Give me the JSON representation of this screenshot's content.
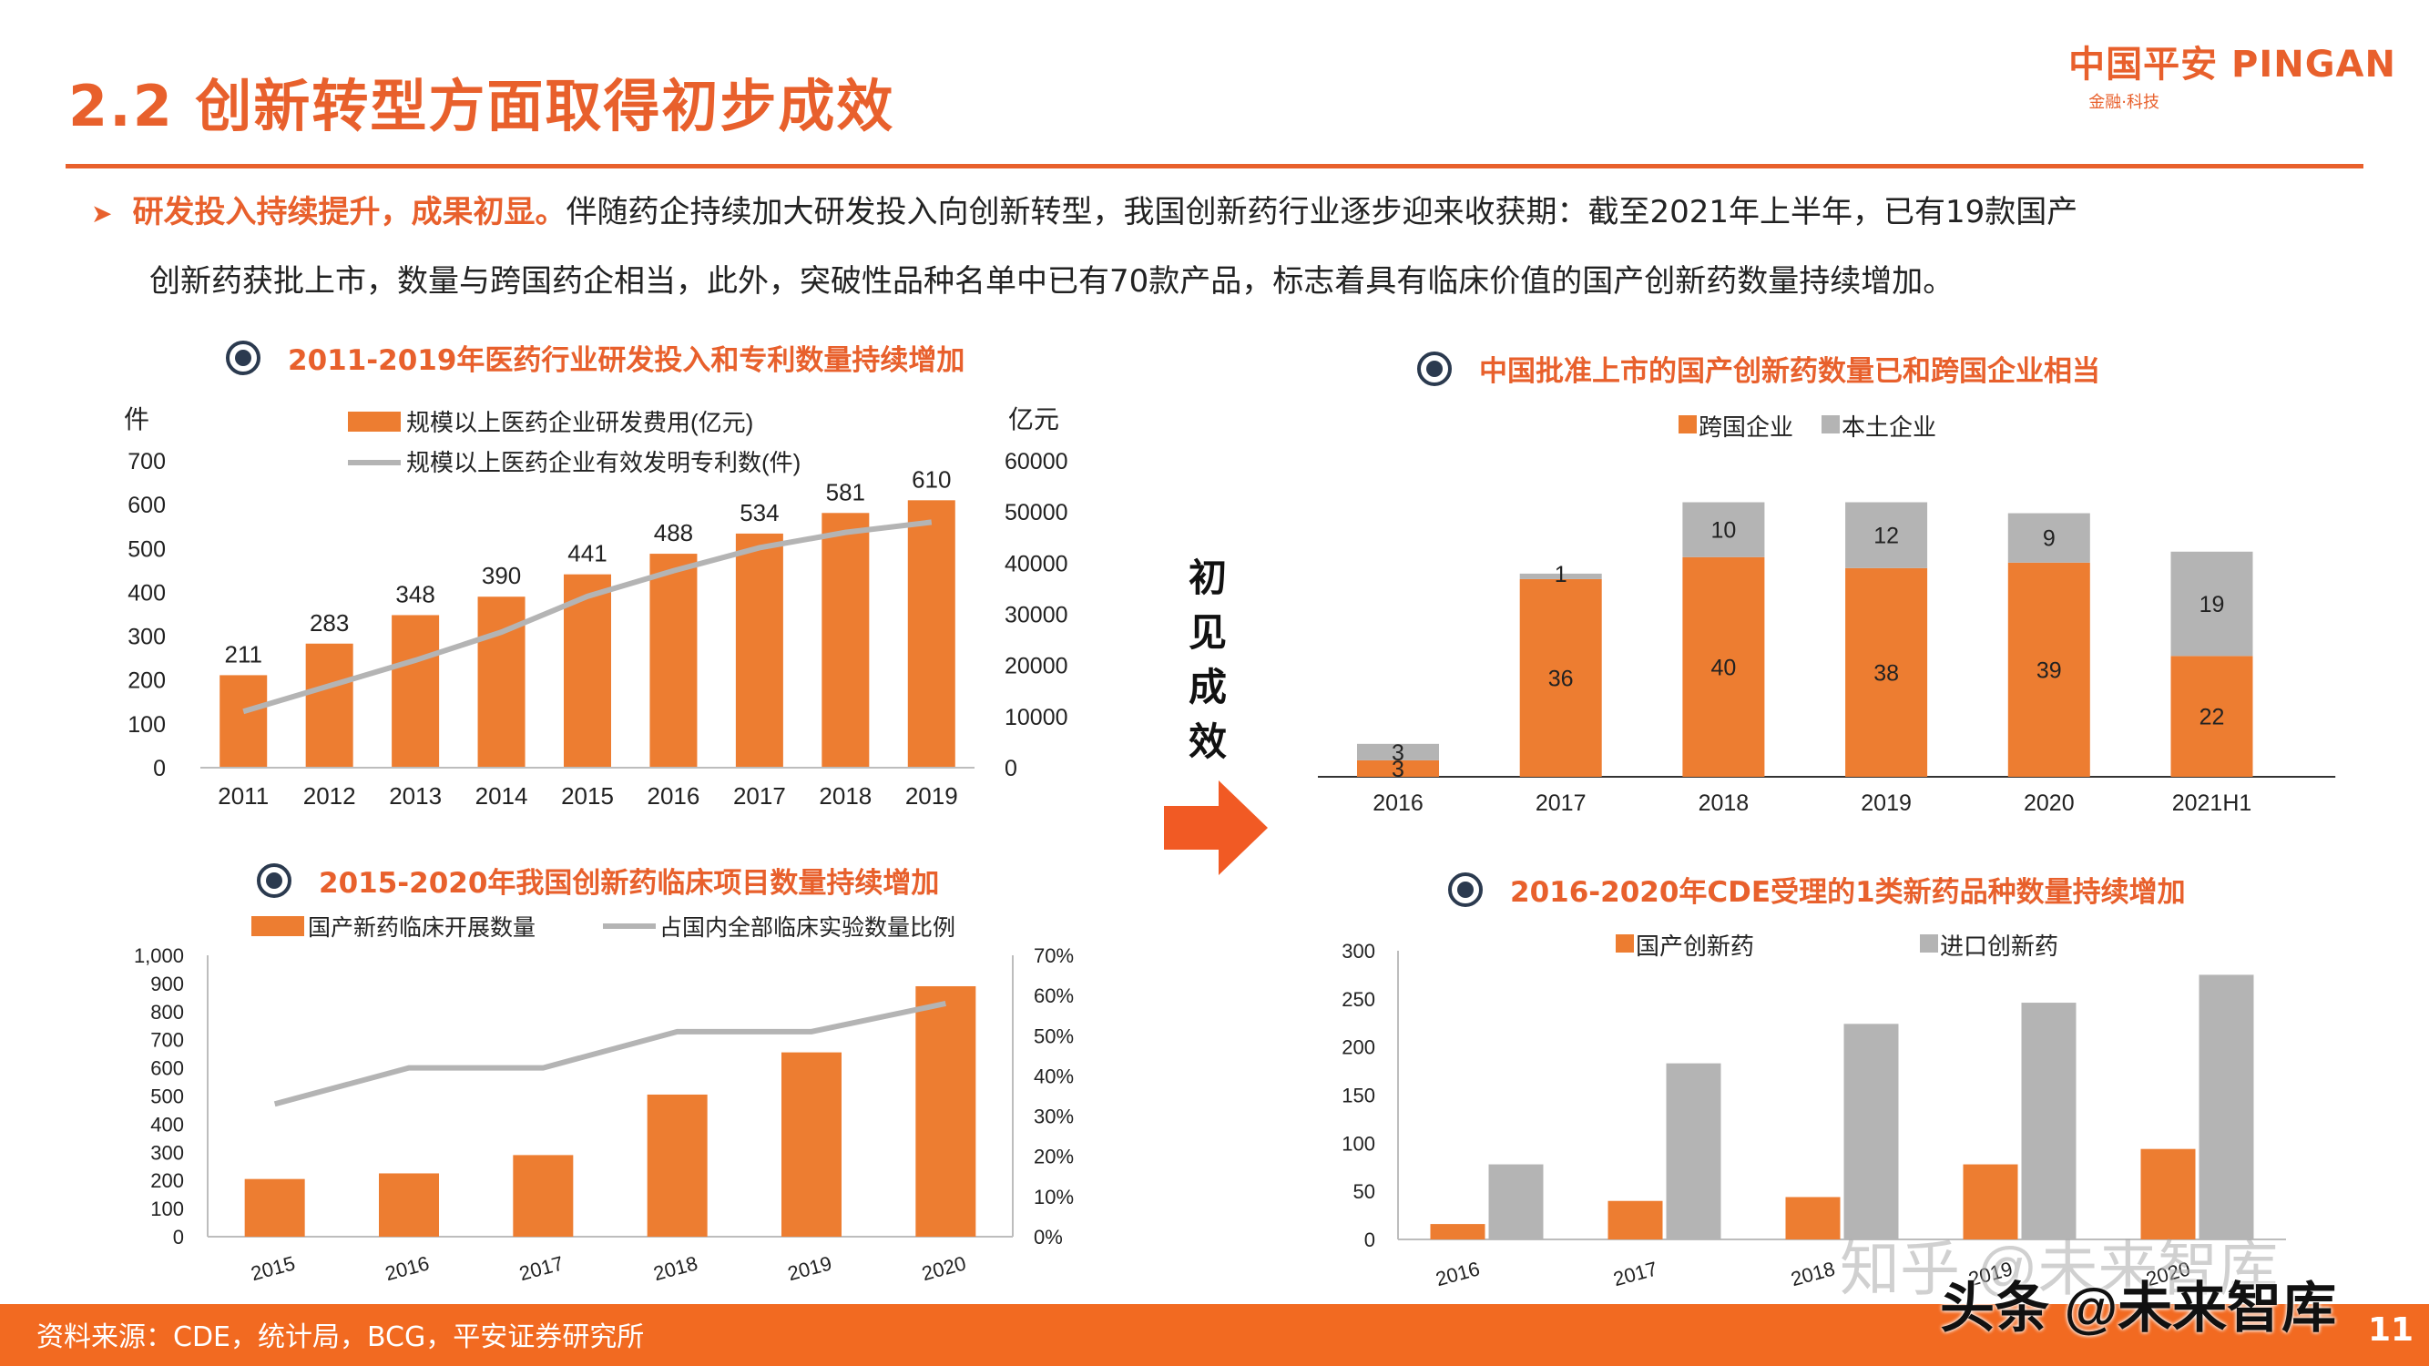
{
  "page": {
    "title": "2.2 创新转型方面取得初步成效",
    "logo_main": "中国平安 PINGAN",
    "logo_sub": "金融·科技",
    "intro_lead": "研发投入持续提升，成果初显。",
    "intro_rest_line1": "伴随药企持续加大研发投入向创新转型，我国创新药行业逐步迎来收获期：截至2021年上半年，已有19款国产",
    "intro_line2": "创新药获批上市，数量与跨国药企相当，此外，突破性品种名单中已有70款产品，标志着具有临床价值的国产创新药数量持续增加。",
    "center_text": "初见成效",
    "source": "资料来源：CDE，统计局，BCG，平安证券研究所",
    "page_number": "11",
    "watermark1": "知乎 @未来智库",
    "watermark2": "头条 @未来智库",
    "accent_color": "#e8602c",
    "bar_orange": "#ed7d31",
    "bar_gray": "#b4b4b4"
  },
  "chart_data": [
    {
      "id": "rd",
      "type": "bar",
      "title": "2011-2019年医药行业研发投入和专利数量持续增加",
      "left_unit": "件",
      "right_unit": "亿元",
      "categories": [
        "2011",
        "2012",
        "2013",
        "2014",
        "2015",
        "2016",
        "2017",
        "2018",
        "2019"
      ],
      "series": [
        {
          "name": "规模以上医药企业研发费用(亿元)",
          "type": "bar",
          "axis": "left",
          "values": [
            211,
            283,
            348,
            390,
            441,
            488,
            534,
            581,
            610
          ]
        },
        {
          "name": "规模以上医药企业有效发明专利数(件)",
          "type": "line",
          "axis": "right",
          "values": [
            11000,
            16000,
            21000,
            26500,
            33500,
            38500,
            43000,
            46000,
            48000
          ]
        }
      ],
      "ylim_left": [
        0,
        700
      ],
      "yticks_left": [
        "0",
        "100",
        "200",
        "300",
        "400",
        "500",
        "600",
        "700"
      ],
      "ylim_right": [
        0,
        60000
      ],
      "yticks_right": [
        "0",
        "10000",
        "20000",
        "30000",
        "40000",
        "50000",
        "60000"
      ],
      "legend_position": "top"
    },
    {
      "id": "clinical",
      "type": "bar",
      "title": "2015-2020年我国创新药临床项目数量持续增加",
      "categories": [
        "2015",
        "2016",
        "2017",
        "2018",
        "2019",
        "2020"
      ],
      "series": [
        {
          "name": "国产新药临床开展数量",
          "type": "bar",
          "axis": "left",
          "values": [
            205,
            225,
            290,
            505,
            655,
            890
          ]
        },
        {
          "name": "占国内全部临床实验数量比例",
          "type": "line",
          "axis": "right",
          "values": [
            33,
            42,
            42,
            51,
            51,
            58
          ]
        }
      ],
      "ylim_left": [
        0,
        1000
      ],
      "yticks_left": [
        "0",
        "100",
        "200",
        "300",
        "400",
        "500",
        "600",
        "700",
        "800",
        "900",
        "1,000"
      ],
      "ylim_right": [
        0,
        70
      ],
      "yticks_right": [
        "0%",
        "10%",
        "20%",
        "30%",
        "40%",
        "50%",
        "60%",
        "70%"
      ],
      "legend_position": "top"
    },
    {
      "id": "approved",
      "type": "bar",
      "stacked": true,
      "title": "中国批准上市的国产创新药数量已和跨国企业相当",
      "categories": [
        "2016",
        "2017",
        "2018",
        "2019",
        "2020",
        "2021H1"
      ],
      "series": [
        {
          "name": "跨国企业",
          "values": [
            3,
            36,
            40,
            38,
            39,
            22
          ]
        },
        {
          "name": "本土企业",
          "values": [
            3,
            1,
            10,
            12,
            9,
            19
          ]
        }
      ],
      "legend_position": "top"
    },
    {
      "id": "cde",
      "type": "bar",
      "title": "2016-2020年CDE受理的1类新药品种数量持续增加",
      "categories": [
        "2016",
        "2017",
        "2018",
        "2019",
        "2020"
      ],
      "series": [
        {
          "name": "国产创新药",
          "values": [
            16,
            40,
            44,
            78,
            94
          ]
        },
        {
          "name": "进口创新药",
          "values": [
            78,
            183,
            224,
            246,
            275
          ]
        }
      ],
      "ylim": [
        0,
        300
      ],
      "yticks": [
        "0",
        "50",
        "100",
        "150",
        "200",
        "250",
        "300"
      ],
      "legend_position": "top"
    }
  ]
}
